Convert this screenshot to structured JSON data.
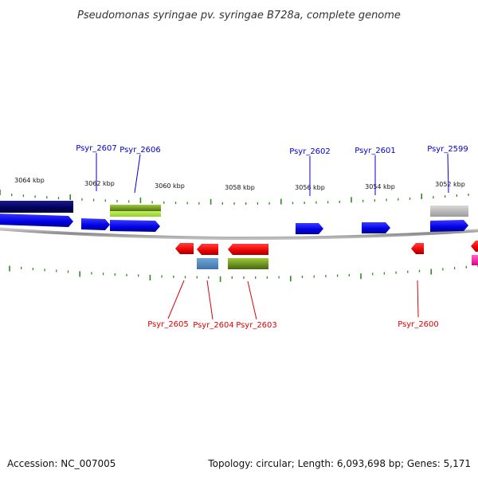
{
  "title": "Pseudomonas syringae pv. syringae B728a, complete genome",
  "footer": {
    "accession": "Accession: NC_007005",
    "topology": "Topology: circular; Length: 6,093,698 bp; Genes: 5,171"
  },
  "colors": {
    "forward_label": "#0000cc",
    "reverse_label": "#dd0000",
    "tick": "#2e8b22",
    "backbone": "#888888"
  },
  "scale": {
    "labels": [
      "3064 kbp",
      "3062 kbp",
      "3060 kbp",
      "3058 kbp",
      "3056 kbp",
      "3054 kbp",
      "3052 kbp"
    ]
  },
  "genes_forward": [
    {
      "label": "Psyr_2607"
    },
    {
      "label": "Psyr_2606"
    },
    {
      "label": "Psyr_2602"
    },
    {
      "label": "Psyr_2601"
    },
    {
      "label": "Psyr_2599"
    }
  ],
  "genes_reverse": [
    {
      "label": "Psyr_2605"
    },
    {
      "label": "Psyr_2604"
    },
    {
      "label": "Psyr_2603"
    },
    {
      "label": "Psyr_2600"
    }
  ]
}
